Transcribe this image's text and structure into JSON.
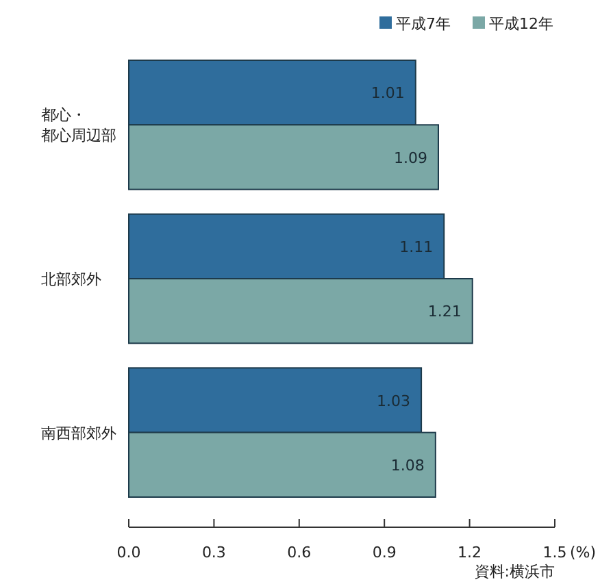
{
  "chart_data": {
    "type": "bar",
    "orientation": "horizontal",
    "categories": [
      "都心・都心周辺部",
      "北部郊外",
      "南西部郊外"
    ],
    "series": [
      {
        "name": "平成7年",
        "color": "#2f6d9c",
        "values": [
          1.01,
          1.11,
          1.03
        ]
      },
      {
        "name": "平成12年",
        "color": "#7ba8a6",
        "values": [
          1.09,
          1.21,
          1.08
        ]
      }
    ],
    "xlim": [
      0,
      1.5
    ],
    "xticks": [
      {
        "value": 0,
        "label": "0.0"
      },
      0.3,
      0.6,
      0.9,
      1.2,
      1.5
    ],
    "xlabel": "(%)",
    "data_labels": true,
    "legend": "top right",
    "annotations": [
      "資料:横浜市"
    ]
  }
}
